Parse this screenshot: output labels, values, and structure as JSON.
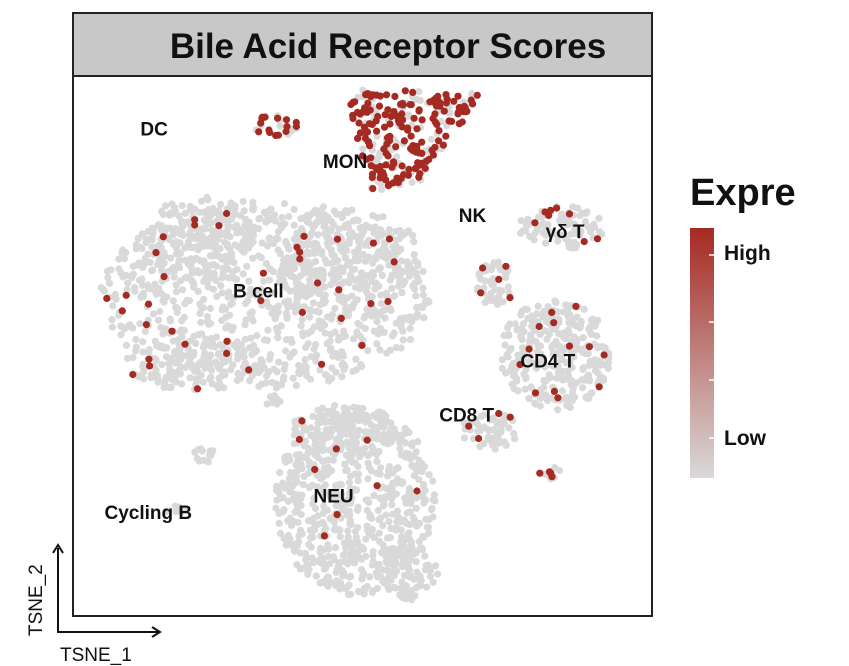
{
  "chart_data": {
    "type": "scatter",
    "title": "Bile Acid Receptor Scores",
    "xlabel": "TSNE_1",
    "ylabel": "TSNE_2",
    "xlim": [
      0,
      100
    ],
    "ylim": [
      0,
      100
    ],
    "grid": false,
    "legend": {
      "title": "Expre",
      "placement": "right",
      "high_label": "High",
      "low_label": "Low",
      "low_color": "#d9d9d9",
      "high_color": "#a52a22"
    },
    "clusters": [
      {
        "label": "DC",
        "x": 14,
        "y": 89,
        "score": "mixed"
      },
      {
        "label": "MON",
        "x": 47,
        "y": 83,
        "score": "high"
      },
      {
        "label": "NK",
        "x": 69,
        "y": 73,
        "score": "low"
      },
      {
        "label": "γδ T",
        "x": 85,
        "y": 70,
        "score": "low"
      },
      {
        "label": "B cell",
        "x": 32,
        "y": 59,
        "score": "low"
      },
      {
        "label": "CD4 T",
        "x": 82,
        "y": 46,
        "score": "low"
      },
      {
        "label": "CD8 T",
        "x": 68,
        "y": 36,
        "score": "low"
      },
      {
        "label": "NEU",
        "x": 45,
        "y": 21,
        "score": "low"
      },
      {
        "label": "Cycling B",
        "x": 13,
        "y": 18,
        "score": "low"
      }
    ],
    "colors": {
      "low": "#d9d9d9",
      "high": "#a52a22",
      "title_bar": "#c8c8c8"
    }
  }
}
